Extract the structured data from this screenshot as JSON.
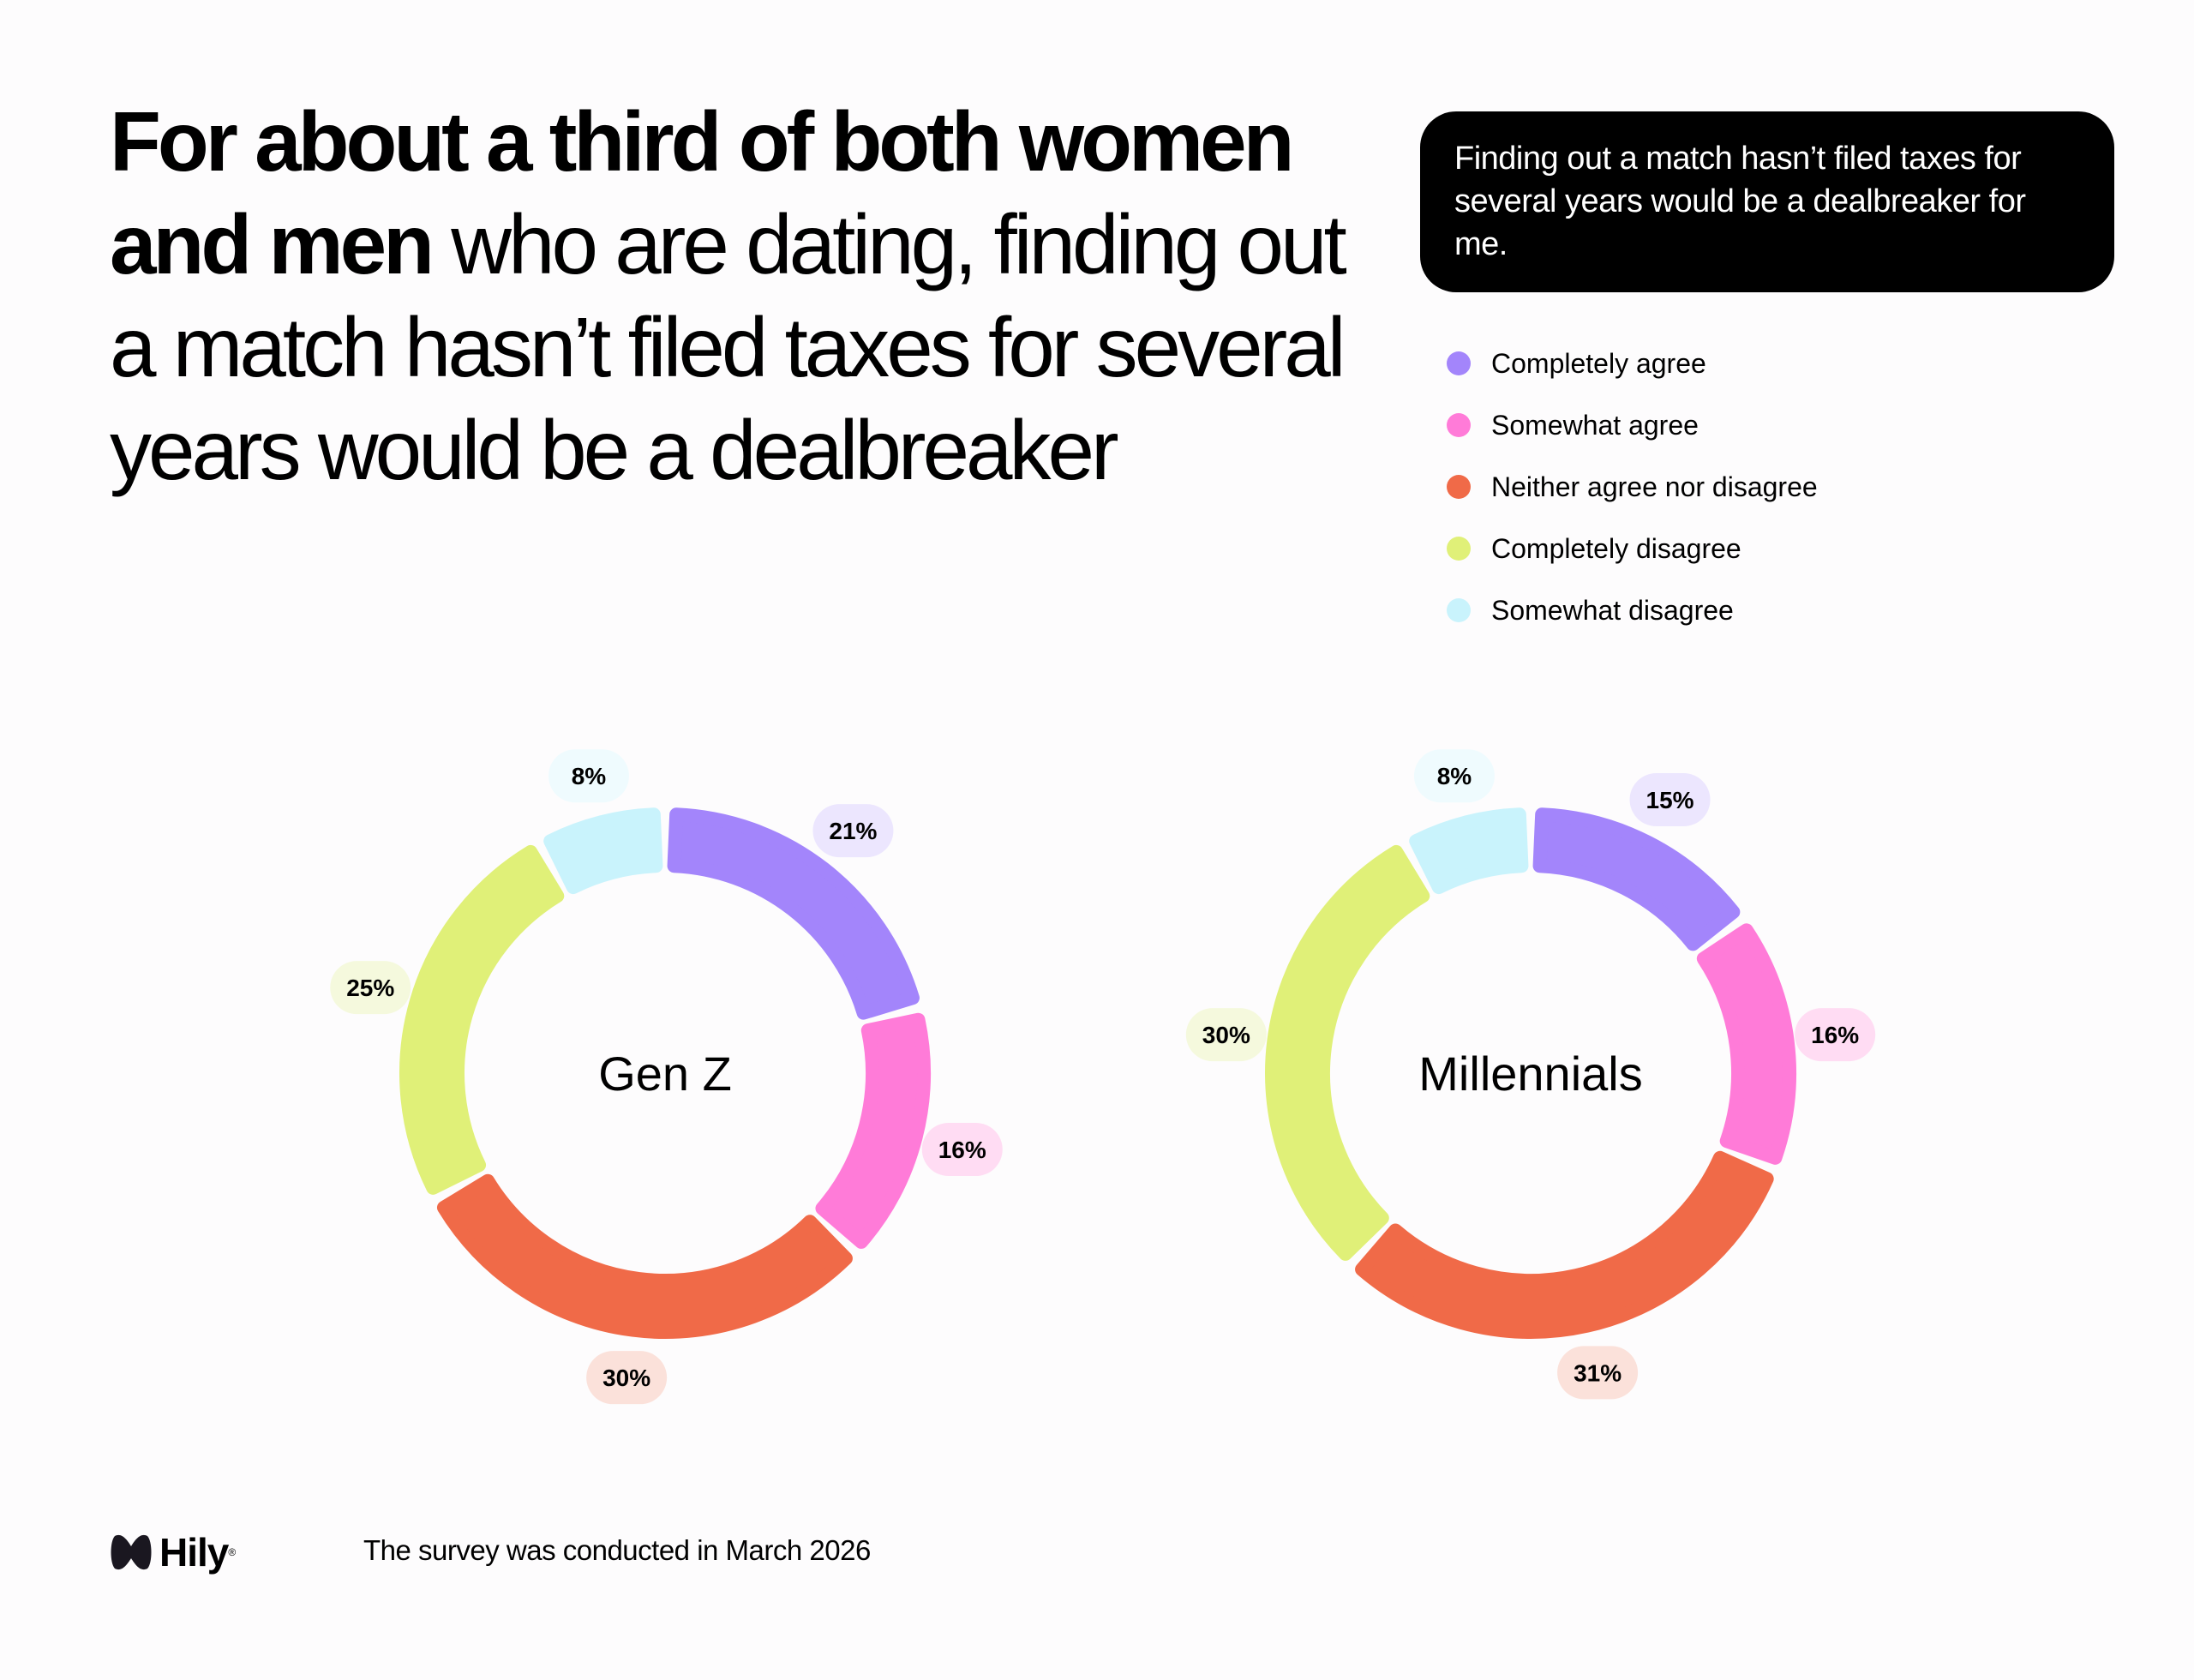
{
  "title": {
    "bold": "For about a third of both women and men",
    "rest": " who are dating, finding out a match hasn’t filed taxes for several years would be a dealbreaker"
  },
  "question": "Finding out a match hasn’t filed taxes for several years would be a dealbreaker for me.",
  "legend": [
    {
      "label": "Completely agree",
      "color": "#a385fb"
    },
    {
      "label": "Somewhat agree",
      "color": "#ff7bd8"
    },
    {
      "label": "Neither agree nor disagree",
      "color": "#f06a48"
    },
    {
      "label": "Completely disagree",
      "color": "#e0f078"
    },
    {
      "label": "Somewhat disagree",
      "color": "#c9f3fc"
    }
  ],
  "chart_data": [
    {
      "type": "pie",
      "title": "Gen Z",
      "categories": [
        "Completely agree",
        "Somewhat agree",
        "Neither agree nor disagree",
        "Completely disagree",
        "Somewhat disagree"
      ],
      "values": [
        21,
        16,
        30,
        25,
        8
      ],
      "labels": [
        "21%",
        "16%",
        "30%",
        "25%",
        "8%"
      ]
    },
    {
      "type": "pie",
      "title": "Millennials",
      "categories": [
        "Completely agree",
        "Somewhat agree",
        "Neither agree nor disagree",
        "Completely disagree",
        "Somewhat disagree"
      ],
      "values": [
        15,
        16,
        31,
        30,
        8
      ],
      "labels": [
        "15%",
        "16%",
        "31%",
        "30%",
        "8%"
      ]
    }
  ],
  "pill_colors": [
    "#ece6fe",
    "#ffdcf3",
    "#fbe1da",
    "#f5f9dd",
    "#effbfe"
  ],
  "footer": {
    "logo": "Hily",
    "note": "The survey was conducted in March 2026"
  }
}
